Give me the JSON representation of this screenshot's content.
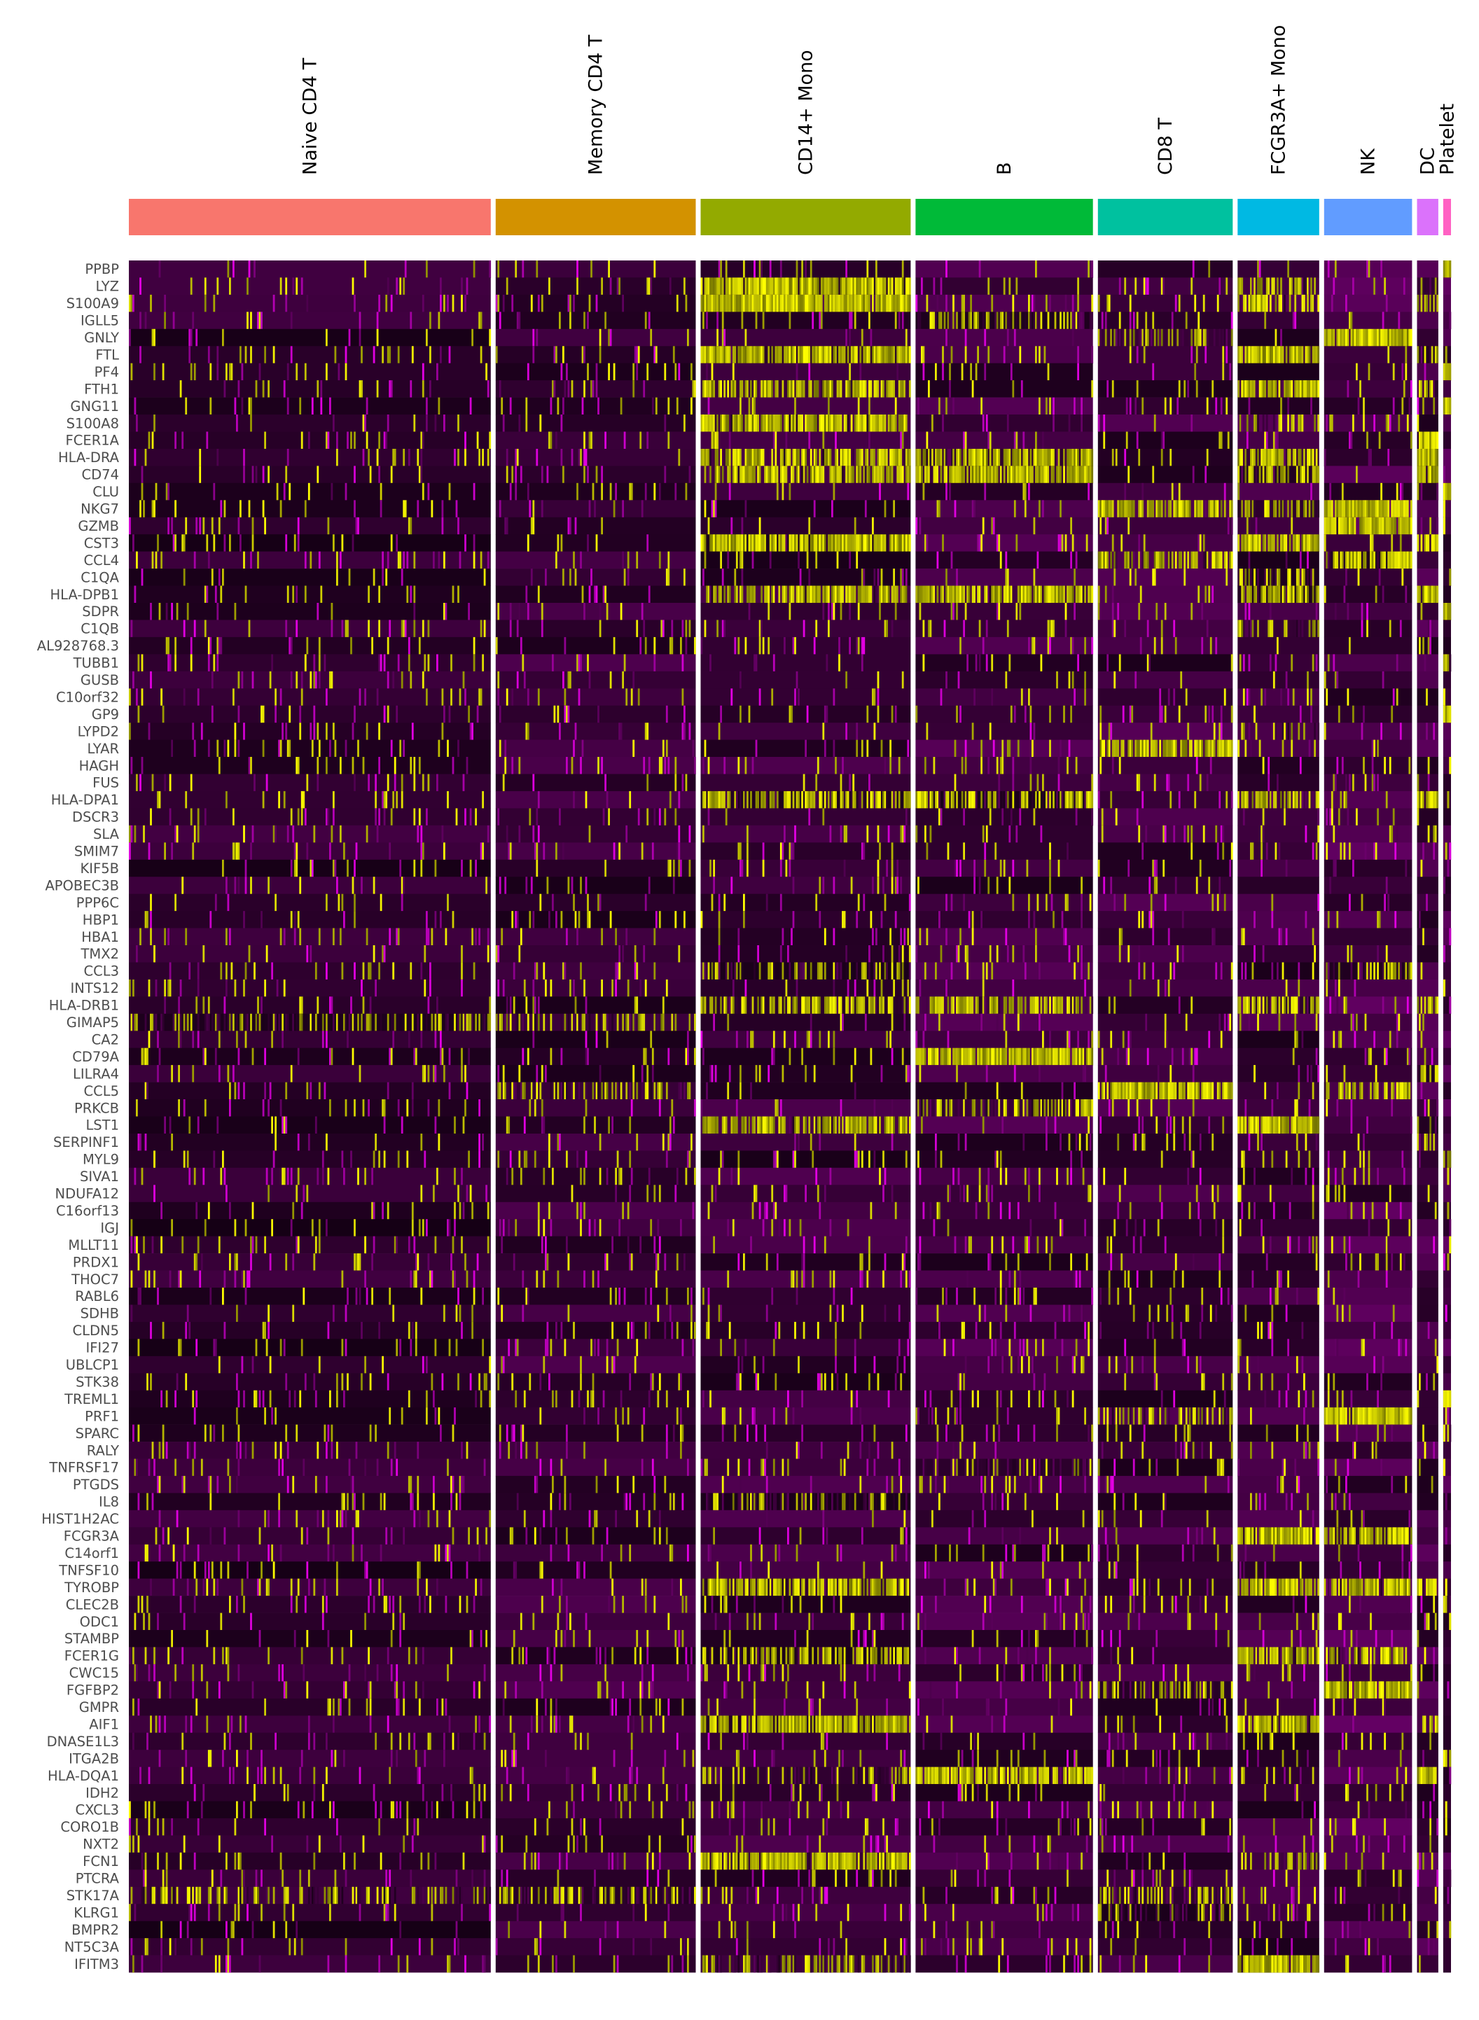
{
  "chart_data": {
    "type": "heatmap",
    "title": "",
    "xlabel": "",
    "ylabel": "",
    "colors": {
      "low": "#FF00FF",
      "mid": "#000000",
      "high": "#FFFF00",
      "background": "#FFFFFF",
      "gene_label": "#4D4D4D"
    },
    "clusters": [
      {
        "name": "Naive CD4 T",
        "color": "#F8766D",
        "cells": 510
      },
      {
        "name": "Memory CD4 T",
        "color": "#D39200",
        "cells": 282
      },
      {
        "name": "CD14+ Mono",
        "color": "#93AA00",
        "cells": 296
      },
      {
        "name": "B",
        "color": "#00BA38",
        "cells": 250
      },
      {
        "name": "CD8 T",
        "color": "#00C19F",
        "cells": 190
      },
      {
        "name": "FCGR3A+ Mono",
        "color": "#00B9E3",
        "cells": 115
      },
      {
        "name": "NK",
        "color": "#619CFF",
        "cells": 124
      },
      {
        "name": "DC",
        "color": "#DB72FB",
        "cells": 30
      },
      {
        "name": "Platelet",
        "color": "#FF61C3",
        "cells": 11
      }
    ],
    "genes": [
      "PPBP",
      "LYZ",
      "S100A9",
      "IGLL5",
      "GNLY",
      "FTL",
      "PF4",
      "FTH1",
      "GNG11",
      "S100A8",
      "FCER1A",
      "HLA-DRA",
      "CD74",
      "CLU",
      "NKG7",
      "GZMB",
      "CST3",
      "CCL4",
      "C1QA",
      "HLA-DPB1",
      "SDPR",
      "C1QB",
      "AL928768.3",
      "TUBB1",
      "GUSB",
      "C10orf32",
      "GP9",
      "LYPD2",
      "LYAR",
      "HAGH",
      "FUS",
      "HLA-DPA1",
      "DSCR3",
      "SLA",
      "SMIM7",
      "KIF5B",
      "APOBEC3B",
      "PPP6C",
      "HBP1",
      "HBA1",
      "TMX2",
      "CCL3",
      "INTS12",
      "HLA-DRB1",
      "GIMAP5",
      "CA2",
      "CD79A",
      "LILRA4",
      "CCL5",
      "PRKCB",
      "LST1",
      "SERPINF1",
      "MYL9",
      "SIVA1",
      "NDUFA12",
      "C16orf13",
      "IGJ",
      "MLLT11",
      "PRDX1",
      "THOC7",
      "RABL6",
      "SDHB",
      "CLDN5",
      "IFI27",
      "UBLCP1",
      "STK38",
      "TREML1",
      "PRF1",
      "SPARC",
      "RALY",
      "TNFRSF17",
      "PTGDS",
      "IL8",
      "HIST1H2AC",
      "FCGR3A",
      "C14orf1",
      "TNFSF10",
      "TYROBP",
      "CLEC2B",
      "ODC1",
      "STAMBP",
      "FCER1G",
      "CWC15",
      "FGFBP2",
      "GMPR",
      "AIF1",
      "DNASE1L3",
      "ITGA2B",
      "HLA-DQA1",
      "IDH2",
      "CXCL3",
      "CORO1B",
      "NXT2",
      "FCN1",
      "PTCRA",
      "STK17A",
      "KLRG1",
      "BMPR2",
      "NT5C3A",
      "IFITM3"
    ],
    "background_level": {
      "Naive CD4 T": 0.2,
      "Memory CD4 T": 0.24,
      "CD14+ Mono": 0.24,
      "B": 0.26,
      "CD8 T": 0.26,
      "FCGR3A+ Mono": 0.26,
      "NK": 0.3,
      "DC": 0.28,
      "Platelet": 0.3
    },
    "high_expression": {
      "PPBP": {
        "Platelet": 0.95
      },
      "LYZ": {
        "CD14+ Mono": 0.9,
        "FCGR3A+ Mono": 0.55,
        "DC": 0.6
      },
      "S100A9": {
        "CD14+ Mono": 0.95,
        "FCGR3A+ Mono": 0.5,
        "DC": 0.4
      },
      "IGLL5": {
        "B": 0.35
      },
      "GNLY": {
        "NK": 0.97,
        "CD8 T": 0.3
      },
      "FTL": {
        "CD14+ Mono": 0.85,
        "FCGR3A+ Mono": 0.85,
        "DC": 0.6
      },
      "PF4": {
        "Platelet": 0.9
      },
      "FTH1": {
        "CD14+ Mono": 0.75,
        "FCGR3A+ Mono": 0.85,
        "DC": 0.5
      },
      "GNG11": {
        "Platelet": 0.9
      },
      "S100A8": {
        "CD14+ Mono": 0.85,
        "FCGR3A+ Mono": 0.3
      },
      "FCER1A": {
        "DC": 0.85
      },
      "HLA-DRA": {
        "CD14+ Mono": 0.75,
        "B": 0.75,
        "FCGR3A+ Mono": 0.7,
        "DC": 0.9
      },
      "CD74": {
        "CD14+ Mono": 0.65,
        "B": 0.8,
        "FCGR3A+ Mono": 0.6,
        "DC": 0.9
      },
      "CLU": {
        "Platelet": 0.85
      },
      "NKG7": {
        "NK": 0.95,
        "CD8 T": 0.75,
        "FCGR3A+ Mono": 0.3
      },
      "GZMB": {
        "NK": 0.95
      },
      "CST3": {
        "CD14+ Mono": 0.9,
        "FCGR3A+ Mono": 0.85,
        "DC": 0.9
      },
      "CCL4": {
        "NK": 0.7,
        "CD8 T": 0.55
      },
      "C1QA": {
        "FCGR3A+ Mono": 0.35
      },
      "HLA-DPB1": {
        "CD14+ Mono": 0.7,
        "B": 0.75,
        "FCGR3A+ Mono": 0.7,
        "DC": 0.9
      },
      "SDPR": {
        "Platelet": 0.9
      },
      "C1QB": {
        "FCGR3A+ Mono": 0.3
      },
      "TUBB1": {
        "Platelet": 0.85
      },
      "GP9": {
        "Platelet": 0.8
      },
      "LYPD2": {
        "FCGR3A+ Mono": 0.2
      },
      "LYAR": {
        "CD8 T": 0.75
      },
      "HLA-DPA1": {
        "CD14+ Mono": 0.55,
        "B": 0.45,
        "FCGR3A+ Mono": 0.55,
        "DC": 0.8
      },
      "CCL3": {
        "NK": 0.35,
        "CD14+ Mono": 0.25
      },
      "HLA-DRB1": {
        "CD14+ Mono": 0.6,
        "B": 0.6,
        "FCGR3A+ Mono": 0.55,
        "DC": 0.7
      },
      "GIMAP5": {
        "Naive CD4 T": 0.3,
        "Memory CD4 T": 0.3
      },
      "CD79A": {
        "B": 0.95
      },
      "LILRA4": {
        "DC": 0.3
      },
      "CCL5": {
        "CD8 T": 0.85,
        "NK": 0.5,
        "Memory CD4 T": 0.3
      },
      "PRKCB": {
        "B": 0.4
      },
      "LST1": {
        "CD14+ Mono": 0.7,
        "FCGR3A+ Mono": 0.9,
        "DC": 0.5
      },
      "SERPINF1": {
        "DC": 0.4
      },
      "MYL9": {
        "Platelet": 0.85
      },
      "TREML1": {
        "Platelet": 0.8
      },
      "PRF1": {
        "NK": 0.95,
        "CD8 T": 0.4
      },
      "SPARC": {
        "Platelet": 0.8
      },
      "TNFRSF17": {
        "B": 0.15
      },
      "IL8": {
        "CD14+ Mono": 0.25
      },
      "FCGR3A": {
        "FCGR3A+ Mono": 0.9,
        "NK": 0.75
      },
      "TYROBP": {
        "CD14+ Mono": 0.75,
        "FCGR3A+ Mono": 0.8,
        "NK": 0.75,
        "DC": 0.6
      },
      "CLEC2B": {
        "Platelet": 0.6
      },
      "FCER1G": {
        "CD14+ Mono": 0.55,
        "FCGR3A+ Mono": 0.8,
        "NK": 0.5
      },
      "FGFBP2": {
        "NK": 0.95,
        "CD8 T": 0.35
      },
      "AIF1": {
        "CD14+ Mono": 0.8,
        "FCGR3A+ Mono": 0.85,
        "DC": 0.6
      },
      "ITGA2B": {
        "Platelet": 0.85
      },
      "HLA-DQA1": {
        "B": 0.8,
        "DC": 0.8,
        "CD14+ Mono": 0.3
      },
      "FCN1": {
        "CD14+ Mono": 0.85,
        "FCGR3A+ Mono": 0.35
      },
      "PTCRA": {
        "Platelet": 0.7
      },
      "STK17A": {
        "Naive CD4 T": 0.3,
        "Memory CD4 T": 0.3,
        "CD8 T": 0.3
      },
      "KLRG1": {
        "CD8 T": 0.3
      },
      "IFITM3": {
        "FCGR3A+ Mono": 0.85,
        "CD14+ Mono": 0.35
      }
    }
  }
}
